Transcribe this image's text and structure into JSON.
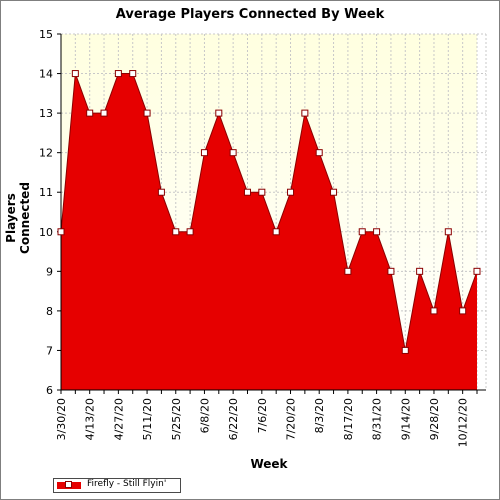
{
  "chart_data": {
    "type": "area",
    "title": "Average Players Connected By Week",
    "xlabel": "Week",
    "ylabel": "Players Connected",
    "ylim": [
      6,
      15
    ],
    "yticks": [
      6,
      7,
      8,
      9,
      10,
      11,
      12,
      13,
      14,
      15
    ],
    "grid": true,
    "legend_position": "bottom-left",
    "colors": {
      "fill": "#e60000",
      "line": "#8b0000",
      "plot_bg_top": "#ffffe0",
      "plot_bg_bottom": "#ffffff",
      "grid": "#c8c8c8"
    },
    "x_tick_labels": [
      "3/30/20",
      "4/13/20",
      "4/27/20",
      "5/11/20",
      "5/25/20",
      "6/8/20",
      "6/22/20",
      "7/6/20",
      "7/20/20",
      "8/3/20",
      "8/17/20",
      "8/31/20",
      "9/14/20",
      "9/28/20",
      "10/12/20"
    ],
    "series": [
      {
        "name": "Firefly - Still Flyin'",
        "values": [
          10,
          14,
          13,
          13,
          14,
          14,
          13,
          11,
          10,
          10,
          12,
          13,
          12,
          11,
          11,
          10,
          11,
          13,
          12,
          11,
          9,
          10,
          10,
          9,
          7,
          9,
          8,
          10,
          8,
          9
        ]
      }
    ]
  }
}
